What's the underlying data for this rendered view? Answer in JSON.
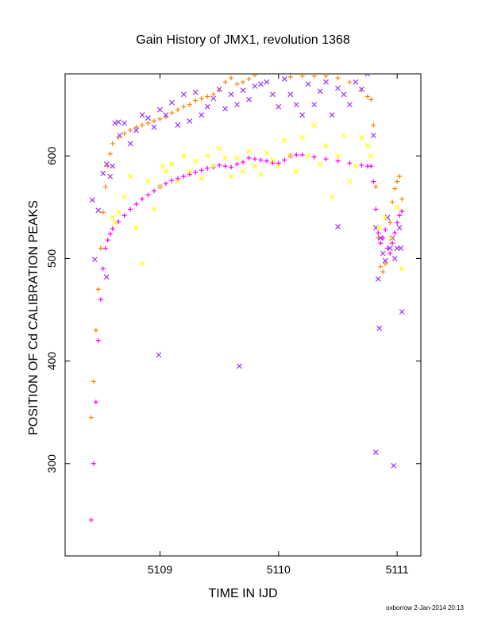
{
  "chart_data": {
    "type": "scatter",
    "title": "Gain History of JMX1, revolution 1368",
    "xlabel": "TIME IN IJD",
    "ylabel": "POSITION OF Cd CALIBRATION PEAKS",
    "xlim": [
      5108.2,
      5111.2
    ],
    "ylim": [
      210,
      680
    ],
    "x_ticks": [
      5109,
      5110,
      5111
    ],
    "x_tick_labels": [
      "5109",
      "5110",
      "5111"
    ],
    "y_ticks": [
      300,
      400,
      500,
      600
    ],
    "y_tick_labels": [
      "300",
      "400",
      "500",
      "600"
    ],
    "grid": false,
    "legend": "none",
    "footer": "oxborrow  2-Jan-2014 20:13",
    "series": [
      {
        "color": "#ff8000",
        "marker": "+",
        "x": [
          5108.42,
          5108.44,
          5108.46,
          5108.48,
          5108.5,
          5108.52,
          5108.54,
          5108.56,
          5108.58,
          5108.6,
          5108.65,
          5108.7,
          5108.75,
          5108.8,
          5108.85,
          5108.9,
          5108.95,
          5109.0,
          5109.05,
          5109.1,
          5109.15,
          5109.2,
          5109.25,
          5109.3,
          5109.35,
          5109.4,
          5109.45,
          5109.5,
          5109.55,
          5109.6,
          5109.65,
          5109.7,
          5109.75,
          5109.8,
          5110.1,
          5110.2,
          5110.3,
          5110.4,
          5110.5,
          5110.6,
          5110.7,
          5110.75,
          5110.78,
          5110.8,
          5110.82,
          5110.84,
          5110.86,
          5110.88,
          5110.9,
          5110.92,
          5110.94,
          5110.96,
          5110.98,
          5111.0,
          5111.02,
          5111.04
        ],
        "y": [
          345,
          380,
          430,
          470,
          510,
          545,
          570,
          590,
          602,
          612,
          618,
          622,
          625,
          628,
          630,
          632,
          634,
          636,
          638,
          642,
          645,
          648,
          650,
          654,
          656,
          658,
          660,
          664,
          672,
          676,
          670,
          672,
          675,
          679,
          677,
          678,
          678,
          678,
          676,
          672,
          664,
          658,
          655,
          630,
          570,
          520,
          492,
          487,
          495,
          510,
          535,
          555,
          568,
          575,
          580,
          558
        ]
      },
      {
        "color": "#ff00ff",
        "marker": "+",
        "x": [
          5108.42,
          5108.44,
          5108.46,
          5108.48,
          5108.5,
          5108.52,
          5108.54,
          5108.56,
          5108.58,
          5108.6,
          5108.65,
          5108.7,
          5108.75,
          5108.8,
          5108.85,
          5108.9,
          5108.95,
          5109.0,
          5109.05,
          5109.1,
          5109.15,
          5109.2,
          5109.25,
          5109.3,
          5109.35,
          5109.4,
          5109.45,
          5109.5,
          5109.55,
          5109.6,
          5109.65,
          5109.7,
          5109.75,
          5109.8,
          5109.85,
          5109.9,
          5109.95,
          5110.0,
          5110.05,
          5110.1,
          5110.15,
          5110.2,
          5110.3,
          5110.4,
          5110.5,
          5110.6,
          5110.7,
          5110.75,
          5110.78,
          5110.8,
          5110.82,
          5110.84,
          5110.86,
          5110.88,
          5110.9,
          5110.92,
          5110.94,
          5110.96,
          5110.98,
          5111.0,
          5111.02,
          5111.04
        ],
        "y": [
          245,
          300,
          360,
          420,
          460,
          490,
          510,
          518,
          524,
          529,
          536,
          542,
          548,
          553,
          558,
          562,
          566,
          570,
          573,
          576,
          578,
          580,
          582,
          584,
          586,
          588,
          589,
          591,
          590,
          589,
          592,
          594,
          598,
          597,
          596,
          595,
          593,
          593,
          596,
          600,
          601,
          601,
          599,
          597,
          595,
          593,
          591,
          590,
          590,
          575,
          548,
          525,
          515,
          520,
          528,
          510,
          505,
          515,
          525,
          535,
          542,
          546
        ]
      },
      {
        "color": "#9933ff",
        "marker": "x",
        "x": [
          5108.45,
          5108.48,
          5108.52,
          5108.55,
          5108.58,
          5108.62,
          5108.66,
          5108.7,
          5108.75,
          5108.8,
          5108.85,
          5108.9,
          5108.95,
          5109.0,
          5109.05,
          5109.1,
          5109.15,
          5109.2,
          5109.25,
          5109.3,
          5109.35,
          5109.4,
          5109.45,
          5109.5,
          5109.55,
          5109.6,
          5109.65,
          5109.7,
          5109.75,
          5109.8,
          5109.85,
          5109.9,
          5109.95,
          5110.0,
          5110.05,
          5110.1,
          5110.15,
          5110.2,
          5110.25,
          5110.3,
          5110.35,
          5110.4,
          5110.45,
          5110.5,
          5110.55,
          5110.6,
          5110.65,
          5110.7,
          5110.75,
          5110.8,
          5110.82,
          5110.84,
          5110.86,
          5110.88,
          5110.9,
          5110.92,
          5110.94,
          5110.96,
          5110.98,
          5111.0,
          5111.02,
          5111.04,
          5108.99,
          5109.67,
          5110.5,
          5110.85,
          5110.82,
          5110.97,
          5111.03,
          5108.43,
          5108.55,
          5108.6,
          5108.65
        ],
        "y": [
          499,
          547,
          583,
          592,
          580,
          632,
          620,
          632,
          612,
          625,
          640,
          637,
          628,
          645,
          640,
          652,
          630,
          660,
          634,
          662,
          640,
          648,
          656,
          665,
          646,
          660,
          650,
          664,
          655,
          668,
          670,
          672,
          660,
          648,
          675,
          660,
          650,
          640,
          670,
          650,
          663,
          672,
          640,
          666,
          660,
          650,
          672,
          665,
          680,
          620,
          530,
          480,
          520,
          505,
          498,
          540,
          510,
          520,
          500,
          510,
          530,
          448,
          406,
          395,
          531,
          432,
          311,
          298,
          510,
          557,
          482,
          590,
          633
        ]
      },
      {
        "color": "#ffff00",
        "marker": "x",
        "x": [
          5108.6,
          5108.62,
          5108.65,
          5108.7,
          5108.75,
          5108.8,
          5108.85,
          5108.9,
          5108.95,
          5109.0,
          5109.02,
          5109.05,
          5109.1,
          5109.15,
          5109.2,
          5109.25,
          5109.3,
          5109.35,
          5109.4,
          5109.45,
          5109.5,
          5109.55,
          5109.6,
          5109.65,
          5109.7,
          5109.75,
          5109.8,
          5109.85,
          5109.9,
          5109.95,
          5110.0,
          5110.05,
          5110.1,
          5110.15,
          5110.2,
          5110.25,
          5110.3,
          5110.35,
          5110.4,
          5110.45,
          5110.5,
          5110.55,
          5110.6,
          5110.65,
          5110.7,
          5110.75,
          5110.78,
          5110.85,
          5110.9,
          5110.95,
          5111.0,
          5111.04
        ],
        "y": [
          540,
          535,
          545,
          560,
          580,
          530,
          495,
          575,
          548,
          570,
          590,
          585,
          592,
          575,
          600,
          585,
          595,
          578,
          600,
          590,
          607,
          598,
          580,
          598,
          585,
          605,
          590,
          582,
          603,
          596,
          590,
          615,
          600,
          585,
          618,
          600,
          630,
          592,
          610,
          560,
          600,
          620,
          575,
          590,
          618,
          610,
          600,
          530,
          540,
          520,
          550,
          490
        ]
      }
    ]
  }
}
